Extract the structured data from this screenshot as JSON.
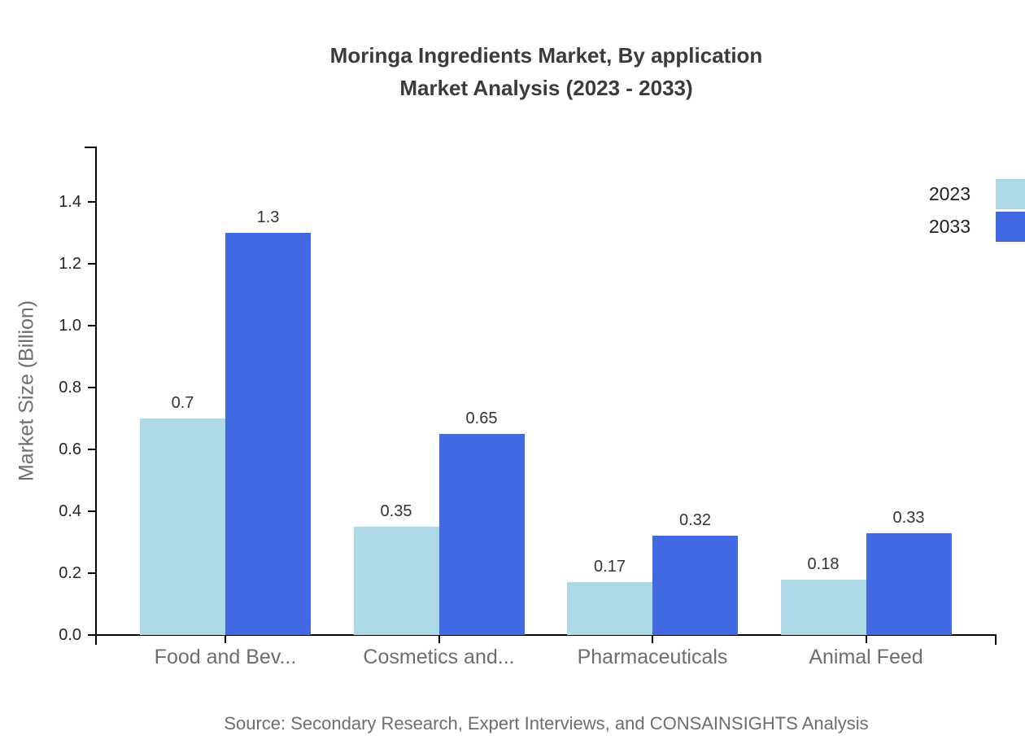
{
  "chart_data": {
    "type": "bar",
    "title_line1": "Moringa Ingredients Market, By application",
    "title_line2": "Market Analysis (2023 - 2033)",
    "ylabel": "Market Size (Billion)",
    "categories": [
      "Food and Bev...",
      "Cosmetics and...",
      "Pharmaceuticals",
      "Animal Feed"
    ],
    "series": [
      {
        "name": "2023",
        "color": "#add8e6",
        "values": [
          0.7,
          0.35,
          0.17,
          0.18
        ]
      },
      {
        "name": "2033",
        "color": "#4169e1",
        "values": [
          1.3,
          0.65,
          0.32,
          0.33
        ]
      }
    ],
    "ylim": [
      0.0,
      1.4
    ],
    "yticks": [
      0.0,
      0.2,
      0.4,
      0.6,
      0.8,
      1.0,
      1.2,
      1.4
    ],
    "grid": false,
    "legend_position": "top-right"
  },
  "source_note": "Source: Secondary Research, Expert Interviews, and CONSAINSIGHTS Analysis",
  "colors": {
    "axis": "#000000",
    "title_text": "#3b3b3b",
    "muted_text": "#6e6e6e",
    "value_text": "#333333",
    "series_2023": "#add8e6",
    "series_2033": "#4169e1"
  }
}
